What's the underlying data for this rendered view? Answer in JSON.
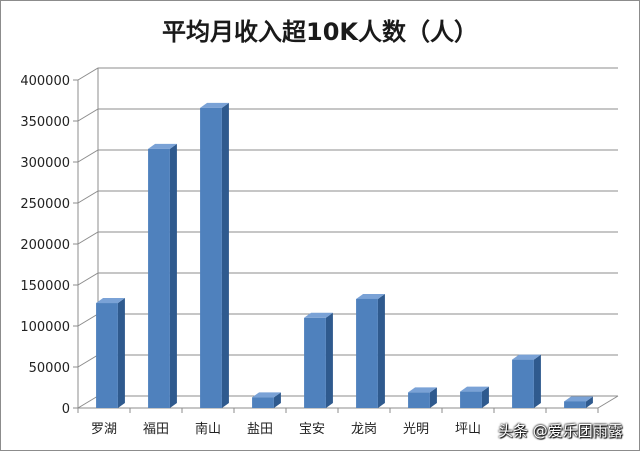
{
  "chart_data": {
    "type": "bar",
    "title": "平均月收入超10K人数（人）",
    "categories": [
      "罗湖",
      "福田",
      "南山",
      "盐田",
      "宝安",
      "龙岗",
      "光明",
      "坪山",
      "",
      ""
    ],
    "values": [
      128000,
      316000,
      366000,
      13000,
      110000,
      133000,
      19000,
      20000,
      59000,
      8000
    ],
    "ylim": [
      0,
      400000
    ],
    "yticks": [
      "0",
      "50000",
      "100000",
      "150000",
      "200000",
      "250000",
      "300000",
      "350000",
      "400000"
    ],
    "grid": true,
    "legend": "none",
    "bar_color": "#4f81bd"
  },
  "watermark": "头条 @爱乐团雨露"
}
